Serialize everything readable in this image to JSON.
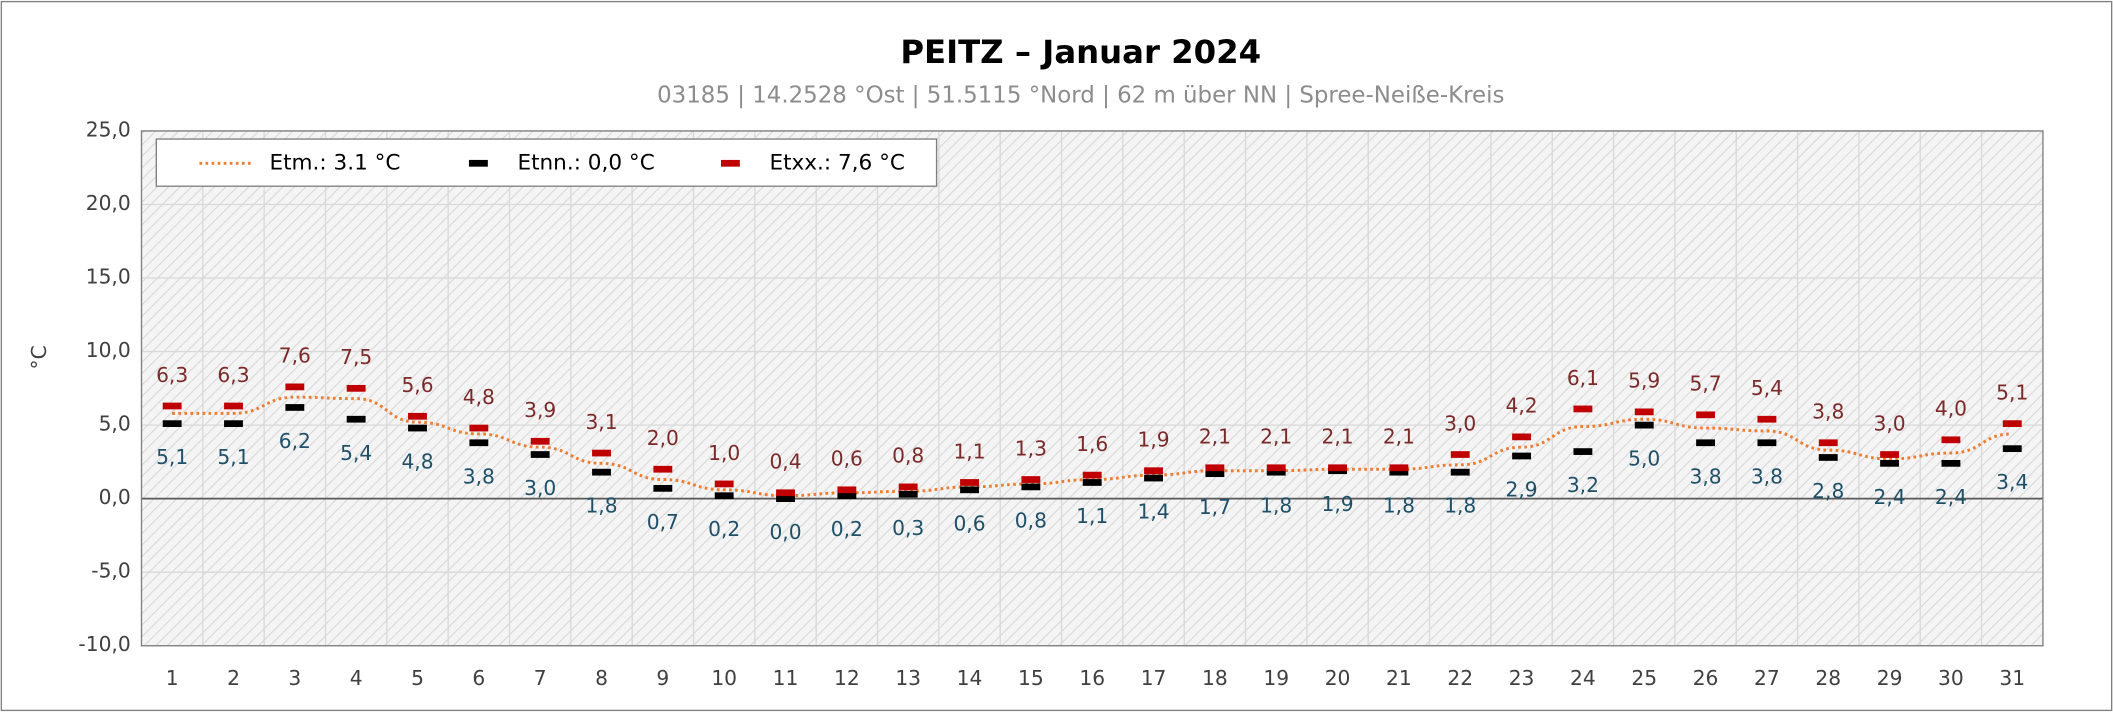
{
  "chart_data": {
    "type": "line",
    "title": "PEITZ  –  Januar 2024",
    "subtitle": "03185  |  14.2528 °Ost  |  51.5115 °Nord  |  62 m über NN  |  Spree-Neiße-Kreis",
    "y_label": "°C",
    "categories": [
      "1",
      "2",
      "3",
      "4",
      "5",
      "6",
      "7",
      "8",
      "9",
      "10",
      "11",
      "12",
      "13",
      "14",
      "15",
      "16",
      "17",
      "18",
      "19",
      "20",
      "21",
      "22",
      "23",
      "24",
      "25",
      "26",
      "27",
      "28",
      "29",
      "30",
      "31"
    ],
    "series": [
      {
        "name": "Etm.: 3.1 °C",
        "color": "#ed7d31",
        "values": [
          5.8,
          5.8,
          6.9,
          6.8,
          5.2,
          4.4,
          3.5,
          2.4,
          1.3,
          0.6,
          0.2,
          0.4,
          0.5,
          0.8,
          1.0,
          1.3,
          1.6,
          1.9,
          1.9,
          2.0,
          2.0,
          2.3,
          3.5,
          4.9,
          5.4,
          4.8,
          4.6,
          3.3,
          2.7,
          3.1,
          4.4
        ]
      },
      {
        "name": "Etnn.: 0,0 °C",
        "color": "#000000",
        "values": [
          5.1,
          5.1,
          6.2,
          5.4,
          4.8,
          3.8,
          3.0,
          1.8,
          0.7,
          0.2,
          0.0,
          0.2,
          0.3,
          0.6,
          0.8,
          1.1,
          1.4,
          1.7,
          1.8,
          1.9,
          1.8,
          1.8,
          2.9,
          3.2,
          5.0,
          3.8,
          3.8,
          2.8,
          2.4,
          2.4,
          3.4
        ],
        "value_labels": [
          "5,1",
          "5,1",
          "6,2",
          "5,4",
          "4,8",
          "3,8",
          "3,0",
          "1,8",
          "0,7",
          "0,2",
          "0,0",
          "0,2",
          "0,3",
          "0,6",
          "0,8",
          "1,1",
          "1,4",
          "1,7",
          "1,8",
          "1,9",
          "1,8",
          "1,8",
          "2,9",
          "3,2",
          "5,0",
          "3,8",
          "3,8",
          "2,8",
          "2,4",
          "2,4",
          "3,4"
        ]
      },
      {
        "name": "Etxx.: 7,6 °C",
        "color": "#c00000",
        "values": [
          6.3,
          6.3,
          7.6,
          7.5,
          5.6,
          4.8,
          3.9,
          3.1,
          2.0,
          1.0,
          0.4,
          0.6,
          0.8,
          1.1,
          1.3,
          1.6,
          1.9,
          2.1,
          2.1,
          2.1,
          2.1,
          3.0,
          4.2,
          6.1,
          5.9,
          5.7,
          5.4,
          3.8,
          3.0,
          4.0,
          5.1
        ],
        "value_labels": [
          "6,3",
          "6,3",
          "7,6",
          "7,5",
          "5,6",
          "4,8",
          "3,9",
          "3,1",
          "2,0",
          "1,0",
          "0,4",
          "0,6",
          "0,8",
          "1,1",
          "1,3",
          "1,6",
          "1,9",
          "2,1",
          "2,1",
          "2,1",
          "2,1",
          "3,0",
          "4,2",
          "6,1",
          "5,9",
          "5,7",
          "5,4",
          "3,8",
          "3,0",
          "4,0",
          "5,1"
        ]
      }
    ],
    "ylim": [
      -10,
      25
    ],
    "yticks": [
      {
        "value": -10,
        "label": "-10,0"
      },
      {
        "value": -5,
        "label": "-5,0"
      },
      {
        "value": 0,
        "label": "0,0"
      },
      {
        "value": 5,
        "label": "5,0"
      },
      {
        "value": 10,
        "label": "10,0"
      },
      {
        "value": 15,
        "label": "15,0"
      },
      {
        "value": 20,
        "label": "20,0"
      },
      {
        "value": 25,
        "label": "25,0"
      }
    ],
    "grid": true,
    "legend": "top-left"
  }
}
